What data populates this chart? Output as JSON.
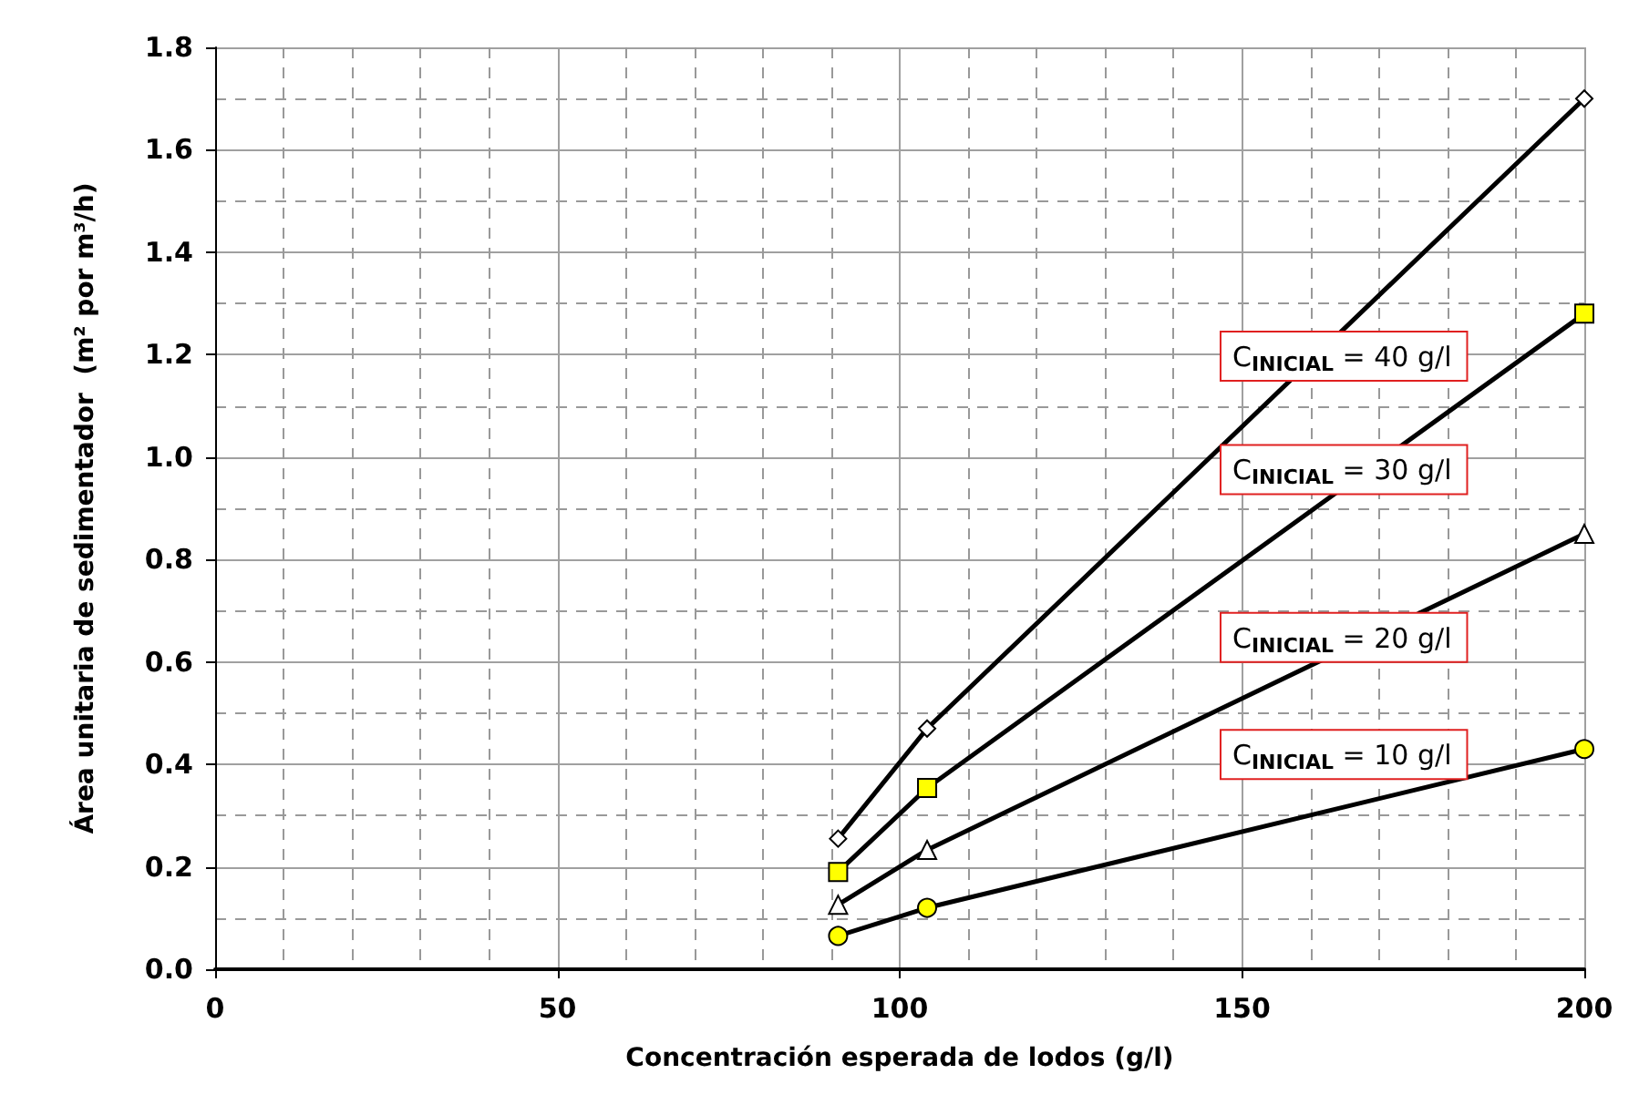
{
  "chart_data": {
    "type": "line",
    "xlabel": "Concentración esperada de lodos (g/l)",
    "ylabel": "Área unitaria de sedimentador  (m² por m³/h)",
    "x": [
      91,
      104,
      200
    ],
    "series": [
      {
        "color": "#000000",
        "marker": "diamond",
        "colors": [
          "#ffffff",
          "#ffffff",
          "#ffffff"
        ],
        "values": [
          0.255,
          0.47,
          1.7
        ]
      },
      {
        "color": "#000000",
        "marker": "square",
        "colors": [
          "#ffff00",
          "#ffff00",
          "#ffff00"
        ],
        "values": [
          0.19,
          0.354,
          1.28
        ]
      },
      {
        "color": "#000000",
        "marker": "triangle",
        "colors": [
          "#ffffff",
          "#ffffff",
          "#ffffff"
        ],
        "values": [
          0.126,
          0.233,
          0.85
        ]
      },
      {
        "color": "#000000",
        "marker": "circle",
        "colors": [
          "#ffff00",
          "#ffff00",
          "#ffff00"
        ],
        "values": [
          0.065,
          0.12,
          0.43
        ]
      }
    ],
    "xlim": [
      0,
      200
    ],
    "xticks": [
      0,
      50,
      100,
      150,
      200
    ],
    "ylim": [
      0,
      1.8
    ],
    "yticks": [
      {
        "value": 0,
        "label": "0.0"
      },
      {
        "value": 0.2,
        "label": "0.2"
      },
      {
        "value": 0.4,
        "label": "0.4"
      },
      {
        "value": 0.6,
        "label": "0.6"
      },
      {
        "value": 0.8,
        "label": "0.8"
      },
      {
        "value": 1,
        "label": "1.0"
      },
      {
        "value": 1.2,
        "label": "1.2"
      },
      {
        "value": 1.4,
        "label": "1.4"
      },
      {
        "value": 1.6,
        "label": "1.6"
      },
      {
        "value": 1.8,
        "label": "1.8"
      }
    ],
    "grid": true,
    "line_style": "solid",
    "annotations": [
      "C$_{INICIAL}$ = 40 g/l",
      "C$_{INICIAL}$ = 30 g/l",
      "C$_{INICIAL}$ = 20 g/l",
      "C$_{INICIAL}$ = 10 g/l"
    ]
  }
}
